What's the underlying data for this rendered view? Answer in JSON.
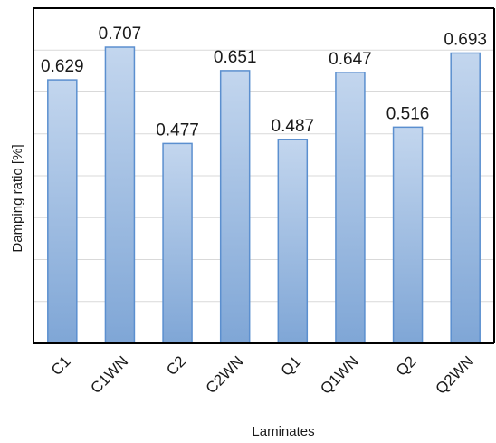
{
  "chart_data": {
    "type": "bar",
    "title": "",
    "xlabel": "Laminates",
    "ylabel": "Damping ratio [%]",
    "categories": [
      "C1",
      "C1WN",
      "C2",
      "C2WN",
      "Q1",
      "Q1WN",
      "Q2",
      "Q2WN"
    ],
    "values": [
      0.629,
      0.707,
      0.477,
      0.651,
      0.487,
      0.647,
      0.516,
      0.693
    ],
    "value_labels": [
      "0.629",
      "0.707",
      "0.477",
      "0.651",
      "0.487",
      "0.647",
      "0.516",
      "0.693"
    ],
    "ylim": [
      0,
      0.8
    ],
    "y_tick_labels_visible": false,
    "grid": true,
    "legend": "none",
    "colors": {
      "bar_top": "#c3d6ee",
      "bar_bottom": "#7fa6d6",
      "bar_stroke": "#5b8fcf",
      "grid": "#d9d9d9",
      "axis": "#000000"
    }
  }
}
